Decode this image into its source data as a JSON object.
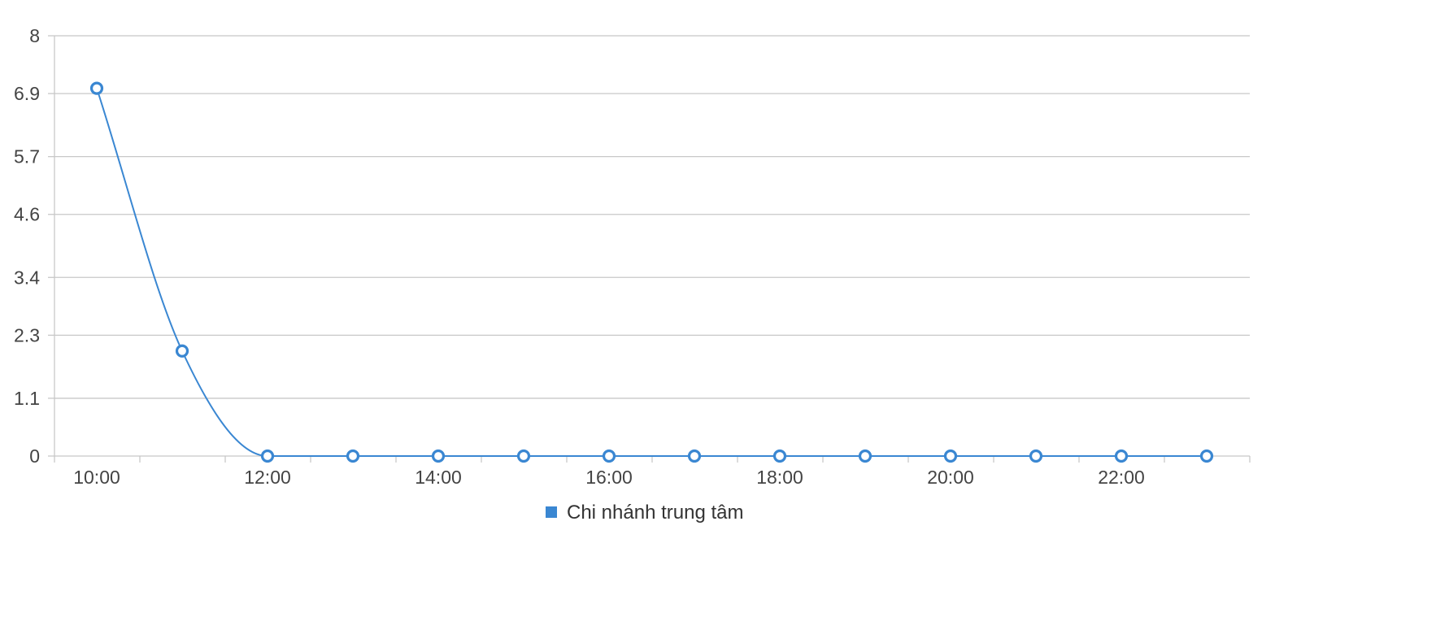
{
  "chart_data": {
    "type": "line",
    "title": "",
    "xlabel": "",
    "ylabel": "",
    "x": [
      "10:00",
      "11:00",
      "12:00",
      "13:00",
      "14:00",
      "15:00",
      "16:00",
      "17:00",
      "18:00",
      "19:00",
      "20:00",
      "21:00",
      "22:00",
      "23:00"
    ],
    "x_tick_labels": [
      "10:00",
      "12:00",
      "14:00",
      "16:00",
      "18:00",
      "20:00",
      "22:00"
    ],
    "y_ticks": [
      0,
      1.1,
      2.3,
      3.4,
      4.6,
      5.7,
      6.9,
      8
    ],
    "y_tick_labels": [
      "0",
      "1.1",
      "2.3",
      "3.4",
      "4.6",
      "5.7",
      "6.9",
      "8"
    ],
    "ylim": [
      0,
      8
    ],
    "series": [
      {
        "name": "Chi nhánh trung tâm",
        "values": [
          7,
          2,
          0,
          0,
          0,
          0,
          0,
          0,
          0,
          0,
          0,
          0,
          0,
          0
        ],
        "color": "#3a87d2",
        "smooth": true,
        "marker": "hollow-circle"
      }
    ],
    "grid": "horizontal",
    "legend_position": "bottom-center"
  }
}
